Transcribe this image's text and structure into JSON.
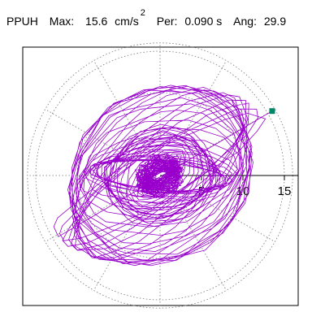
{
  "header": {
    "station": "PPUH",
    "max_label": "Max:",
    "max_value": "15.6",
    "max_unit": "cm/s",
    "max_unit_exp": "2",
    "per_label": "Per:",
    "per_value": "0.090 s",
    "ang_label": "Ang:",
    "ang_value": "29.9"
  },
  "chart_data": {
    "type": "polar-particle-motion",
    "title": "PPUH   Max:  15.6 cm/s2  Per:  0.090 s   Ang:  29.9",
    "max": 15.6,
    "period_s": 0.09,
    "angle_deg": 29.9,
    "radial_range": [
      0,
      16
    ],
    "ring_values": [
      5,
      10,
      15
    ],
    "tick_labels": [
      "5",
      "10",
      "15"
    ],
    "spokes_deg": [
      0,
      30,
      60,
      90,
      120,
      150,
      180,
      210,
      240,
      270,
      300,
      330
    ],
    "grid": true,
    "trace_color": "#9900CC",
    "marker_color": "#008866",
    "peak_marker": {
      "r": 15.6,
      "angle_deg": 29.9
    }
  }
}
